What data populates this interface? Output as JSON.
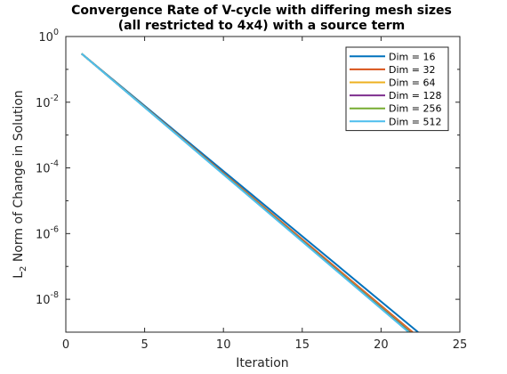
{
  "chart_data": {
    "type": "line",
    "title_lines": [
      "Convergence Rate of V-cycle with differing mesh sizes",
      "(all restricted to 4x4) with a source term"
    ],
    "xlabel": "Iteration",
    "ylabel_main": "L",
    "ylabel_sub": "2",
    "ylabel_rest": " Norm of Change in Solution",
    "xlim": [
      0,
      25
    ],
    "ylim": [
      1e-09,
      1
    ],
    "yscale": "log",
    "xticks": [
      0,
      5,
      10,
      15,
      20,
      25
    ],
    "yticks": [
      {
        "base": "10",
        "exp": "0",
        "value": 1
      },
      {
        "base": "10",
        "exp": "-2",
        "value": 0.01
      },
      {
        "base": "10",
        "exp": "-4",
        "value": 0.0001
      },
      {
        "base": "10",
        "exp": "-6",
        "value": 1e-06
      },
      {
        "base": "10",
        "exp": "-8",
        "value": 1e-08
      }
    ],
    "grid": false,
    "legend_position": "top-right",
    "series": [
      {
        "name": "Dim = 16",
        "color": "#0072BD",
        "x": [
          1,
          22.35
        ],
        "y": [
          0.3,
          1e-09
        ]
      },
      {
        "name": "Dim = 32",
        "color": "#D95319",
        "x": [
          1,
          22.0
        ],
        "y": [
          0.3,
          1e-09
        ]
      },
      {
        "name": "Dim = 64",
        "color": "#EDB120",
        "x": [
          1,
          21.9
        ],
        "y": [
          0.3,
          1e-09
        ]
      },
      {
        "name": "Dim = 128",
        "color": "#7E2F8E",
        "x": [
          1,
          21.85
        ],
        "y": [
          0.3,
          1e-09
        ]
      },
      {
        "name": "Dim = 256",
        "color": "#77AC30",
        "x": [
          1,
          21.8
        ],
        "y": [
          0.3,
          1e-09
        ]
      },
      {
        "name": "Dim = 512",
        "color": "#4DBEEE",
        "x": [
          1,
          21.75
        ],
        "y": [
          0.3,
          1e-09
        ]
      }
    ]
  }
}
